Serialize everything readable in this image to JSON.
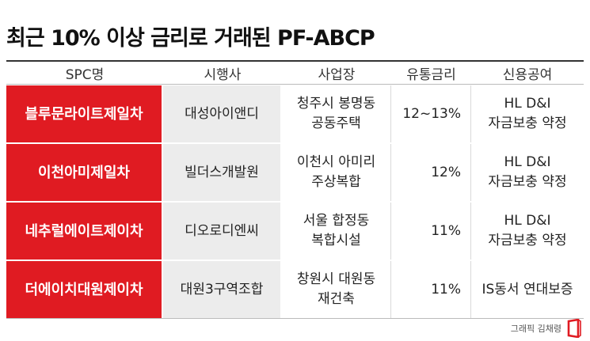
{
  "title": "최근 10% 이상 금리로 거래된 PF-ABCP",
  "headers": [
    "SPC명",
    "시행사",
    "사업장",
    "유통금리",
    "신용공여"
  ],
  "rows": [
    {
      "spc": "블루문라이트제일차",
      "executor": "대성아이앤디",
      "project": [
        "청주시 봉명동",
        "공동주택"
      ],
      "rate": "12~13%",
      "credit": [
        "HL D&I",
        "자금보충 약정"
      ]
    },
    {
      "spc": "이천아미제일차",
      "executor": "빌더스개발원",
      "project": [
        "이천시 아미리",
        "주상복합"
      ],
      "rate": "12%",
      "credit": [
        "HL D&I",
        "자금보충 약정"
      ]
    },
    {
      "spc": "네추럴에이트제이차",
      "executor": "디오로디엔씨",
      "project": [
        "서울 합정동",
        "복합시설"
      ],
      "rate": "11%",
      "credit": [
        "HL D&I",
        "자금보충 약정"
      ]
    },
    {
      "spc": "더에이치대원제이차",
      "executor": "대원3구역조합",
      "project": [
        "창원시 대원동",
        "재건축"
      ],
      "rate": "11%",
      "credit": [
        "IS동서 연대보증"
      ]
    }
  ],
  "footer_credit": "그래픽 김채령",
  "colors": {
    "accent": "#e01b22",
    "executor_bg": "#ececec"
  },
  "logo_icon": "red-bracket-logo-icon"
}
